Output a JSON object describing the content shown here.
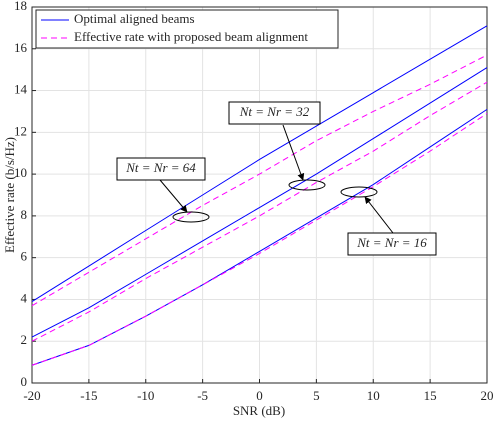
{
  "chart_data": {
    "type": "line",
    "x_label": "SNR (dB)",
    "y_label": "Effective rate (b/s/Hz)",
    "x": [
      -20,
      -15,
      -10,
      -5,
      0,
      5,
      10,
      15,
      20
    ],
    "series": [
      {
        "name": "Optimal aligned beams",
        "color": "#0000ff",
        "dashed": false,
        "lines": [
          [
            3.9,
            5.6,
            7.3,
            9.0,
            10.7,
            12.3,
            13.9,
            15.5,
            17.1
          ],
          [
            2.2,
            3.6,
            5.2,
            6.8,
            8.4,
            10.0,
            11.7,
            13.4,
            15.1
          ],
          [
            0.85,
            1.8,
            3.2,
            4.7,
            6.3,
            7.9,
            9.5,
            11.3,
            13.1
          ]
        ]
      },
      {
        "name": "Effective rate with proposed beam alignment",
        "color": "#ff00ff",
        "dashed": true,
        "lines": [
          [
            3.7,
            5.3,
            6.9,
            8.5,
            10.0,
            11.6,
            13.0,
            14.3,
            15.7
          ],
          [
            2.0,
            3.4,
            5.0,
            6.5,
            8.0,
            9.6,
            11.1,
            12.8,
            14.4
          ],
          [
            0.85,
            1.8,
            3.2,
            4.7,
            6.2,
            7.8,
            9.4,
            11.1,
            12.9
          ]
        ]
      }
    ],
    "annotations": [
      "Nt = Nr = 64",
      "Nt = Nr = 32",
      "Nt = Nr = 16"
    ],
    "xlim": [
      -20,
      20
    ],
    "xticks": [
      -20,
      -15,
      -10,
      -5,
      0,
      5,
      10,
      15,
      20
    ],
    "ylim": [
      0,
      18
    ],
    "yticks": [
      0,
      2,
      4,
      6,
      8,
      10,
      12,
      14,
      16,
      18
    ],
    "grid": true,
    "legend": "upper-left"
  }
}
